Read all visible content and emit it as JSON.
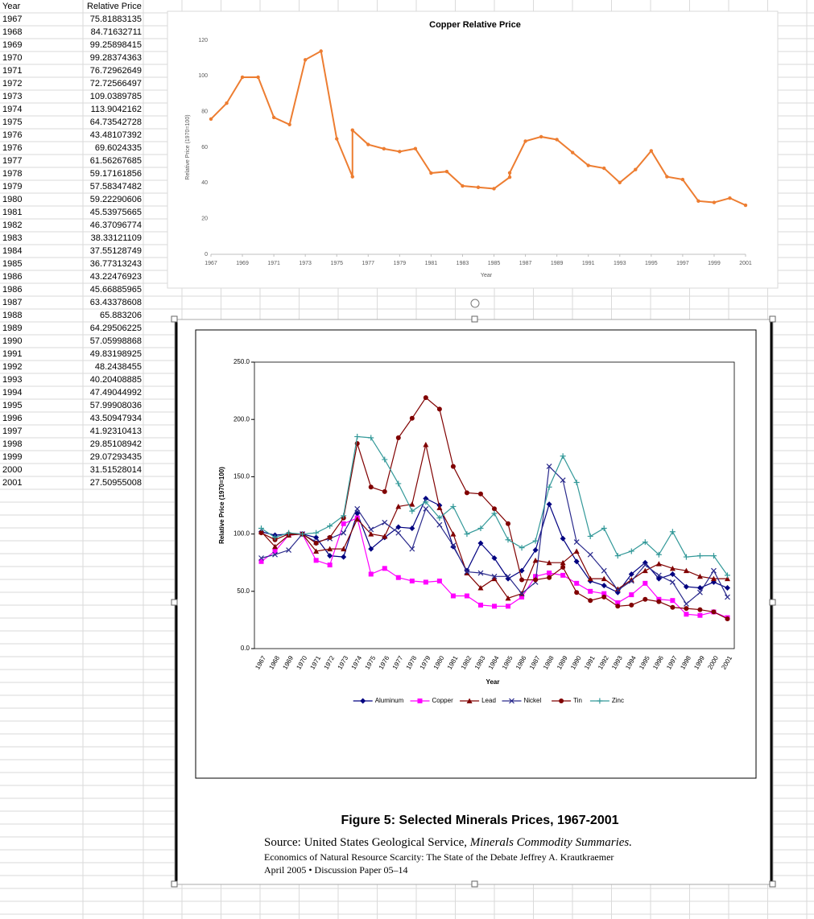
{
  "table": {
    "header": [
      "Year",
      "Relative Price"
    ],
    "rows": [
      [
        1967,
        75.81883135
      ],
      [
        1968,
        84.71632711
      ],
      [
        1969,
        99.25898415
      ],
      [
        1970,
        99.28374363
      ],
      [
        1971,
        76.72962649
      ],
      [
        1972,
        72.72566497
      ],
      [
        1973,
        109.0389785
      ],
      [
        1974,
        113.9042162
      ],
      [
        1975,
        64.73542728
      ],
      [
        1976,
        43.48107392
      ],
      [
        1976,
        69.6024335
      ],
      [
        1977,
        61.56267685
      ],
      [
        1978,
        59.17161856
      ],
      [
        1979,
        57.58347482
      ],
      [
        1980,
        59.22290606
      ],
      [
        1981,
        45.53975665
      ],
      [
        1982,
        46.37096774
      ],
      [
        1983,
        38.33121109
      ],
      [
        1984,
        37.55128749
      ],
      [
        1985,
        36.77313243
      ],
      [
        1986,
        43.22476923
      ],
      [
        1986,
        45.66885965
      ],
      [
        1987,
        63.43378608
      ],
      [
        1988,
        65.883206
      ],
      [
        1989,
        64.29506225
      ],
      [
        1990,
        57.05998868
      ],
      [
        1991,
        49.83198925
      ],
      [
        1992,
        48.2438455
      ],
      [
        1993,
        40.20408885
      ],
      [
        1994,
        47.49044992
      ],
      [
        1995,
        57.99908036
      ],
      [
        1996,
        43.50947934
      ],
      [
        1997,
        41.92310413
      ],
      [
        1998,
        29.85108942
      ],
      [
        1999,
        29.07293435
      ],
      [
        2000,
        31.51528014
      ],
      [
        2001,
        27.50955008
      ]
    ]
  },
  "chart_data": [
    {
      "type": "line",
      "title": "Copper Relative Price",
      "x_label": "Year",
      "y_label": "Relative Price (1970=100)",
      "color": "#ed7d31",
      "x": [
        1967,
        1968,
        1969,
        1970,
        1971,
        1972,
        1973,
        1974,
        1975,
        1976,
        1976,
        1977,
        1978,
        1979,
        1980,
        1981,
        1982,
        1983,
        1984,
        1985,
        1986,
        1986,
        1987,
        1988,
        1989,
        1990,
        1991,
        1992,
        1993,
        1994,
        1995,
        1996,
        1997,
        1998,
        1999,
        2000,
        2001
      ],
      "values": [
        75.81883135,
        84.71632711,
        99.25898415,
        99.28374363,
        76.72962649,
        72.72566497,
        109.0389785,
        113.9042162,
        64.73542728,
        43.48107392,
        69.6024335,
        61.56267685,
        59.17161856,
        57.58347482,
        59.22290606,
        45.53975665,
        46.37096774,
        38.33121109,
        37.55128749,
        36.77313243,
        43.22476923,
        45.66885965,
        63.43378608,
        65.883206,
        64.29506225,
        57.05998868,
        49.83198925,
        48.2438455,
        40.20408885,
        47.49044992,
        57.99908036,
        43.50947934,
        41.92310413,
        29.85108942,
        29.07293435,
        31.51528014,
        27.50955008
      ],
      "xlim": [
        1967,
        2001
      ],
      "xticks": [
        1967,
        1969,
        1971,
        1973,
        1975,
        1977,
        1979,
        1981,
        1983,
        1985,
        1987,
        1989,
        1991,
        1993,
        1995,
        1997,
        1999,
        2001
      ],
      "ylim": [
        0,
        120
      ],
      "yticks": [
        0,
        20,
        40,
        60,
        80,
        100,
        120
      ]
    },
    {
      "type": "line",
      "title": "Figure 5: Selected Minerals Prices, 1967-2001",
      "x_label": "Year",
      "y_label": "Relative Price (1970=100)",
      "legend": "bottom",
      "categories": [
        "1967",
        "1968",
        "1969",
        "1970",
        "1971",
        "1972",
        "1973",
        "1974",
        "1975",
        "1976",
        "1977",
        "1978",
        "1979",
        "1980",
        "1981",
        "1982",
        "1983",
        "1984",
        "1985",
        "1986",
        "1987",
        "1988",
        "1989",
        "1990",
        "1991",
        "1992",
        "1993",
        "1994",
        "1995",
        "1996",
        "1997",
        "1998",
        "1999",
        "2000",
        "2001"
      ],
      "ylim": [
        0,
        250
      ],
      "yticks": [
        {
          "value": 0,
          "label": "0.0"
        },
        {
          "value": 50,
          "label": "50.0"
        },
        {
          "value": 100,
          "label": "100.0"
        },
        {
          "value": 150,
          "label": "150.0"
        },
        {
          "value": 200,
          "label": "200.0"
        },
        {
          "value": 250,
          "label": "250.0"
        }
      ],
      "series": [
        {
          "name": "Aluminum",
          "color": "#000080",
          "marker": "diamond",
          "values": [
            102,
            99,
            100,
            100,
            97,
            81,
            80,
            118,
            87,
            97,
            106,
            105,
            131,
            125,
            89,
            68,
            92,
            79,
            61,
            68,
            86,
            126,
            96,
            76,
            59,
            55,
            49,
            65,
            75,
            61,
            65,
            54,
            53,
            58,
            53
          ]
        },
        {
          "name": "Copper",
          "color": "#ff00ff",
          "marker": "square",
          "values": [
            76,
            85,
            99,
            100,
            77,
            73,
            109,
            114,
            65,
            70,
            62,
            59,
            58,
            59,
            46,
            46,
            38,
            37,
            37,
            45,
            63,
            66,
            64,
            57,
            50,
            48,
            40,
            47,
            57,
            43,
            42,
            30,
            29,
            32,
            27
          ]
        },
        {
          "name": "Lead",
          "color": "#800000",
          "marker": "triangle",
          "values": [
            102,
            89,
            99,
            100,
            85,
            87,
            87,
            113,
            100,
            98,
            124,
            126,
            178,
            123,
            100,
            66,
            53,
            61,
            44,
            48,
            77,
            75,
            75,
            85,
            61,
            61,
            52,
            60,
            68,
            74,
            70,
            68,
            63,
            61,
            61
          ]
        },
        {
          "name": "Nickel",
          "color": "#2a2a8c",
          "marker": "x",
          "values": [
            79,
            82,
            86,
            100,
            93,
            96,
            101,
            122,
            104,
            110,
            101,
            87,
            122,
            108,
            90,
            67,
            66,
            63,
            63,
            48,
            58,
            159,
            147,
            93,
            82,
            68,
            51,
            59,
            73,
            64,
            58,
            39,
            49,
            68,
            45
          ]
        },
        {
          "name": "Tin",
          "color": "#800000",
          "marker": "circle",
          "values": [
            101,
            95,
            100,
            100,
            92,
            97,
            114,
            179,
            141,
            137,
            184,
            201,
            219,
            209,
            159,
            136,
            135,
            122,
            109,
            60,
            60,
            62,
            71,
            49,
            42,
            45,
            37,
            38,
            43,
            41,
            36,
            35,
            34,
            32,
            26
          ]
        },
        {
          "name": "Zinc",
          "color": "#339999",
          "marker": "plus",
          "values": [
            105,
            97,
            101,
            100,
            101,
            107,
            116,
            185,
            184,
            165,
            144,
            120,
            128,
            114,
            124,
            100,
            105,
            118,
            95,
            88,
            94,
            141,
            168,
            145,
            98,
            105,
            81,
            85,
            93,
            82,
            102,
            80,
            81,
            81,
            64
          ]
        }
      ]
    }
  ],
  "figure": {
    "source_prefix": "Source: United States Geological Service, ",
    "source_title": "Minerals Commodity Summaries.",
    "footer": [
      "Economics of Natural Resource Scarcity: The State of the Debate  Jeffrey A. Krautkraemer",
      "April 2005 • Discussion Paper 05–14"
    ]
  }
}
